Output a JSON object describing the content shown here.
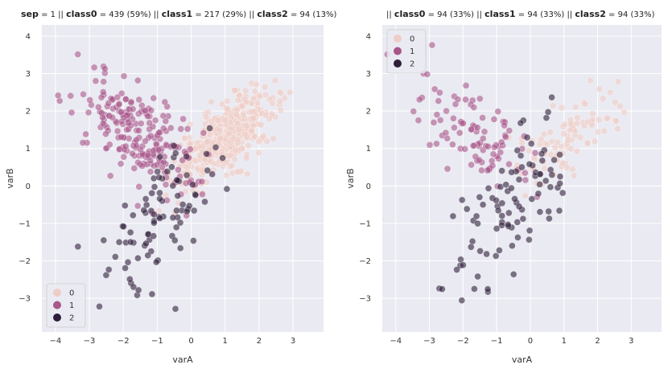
{
  "chart_data": [
    {
      "type": "scatter",
      "title_parts": [
        {
          "t": "sep",
          "b": true
        },
        {
          "t": " = 1 || ",
          "s": true
        },
        {
          "t": "class0",
          "b": true
        },
        {
          "t": " = 439 (59%)  || ",
          "s": true
        },
        {
          "t": "class1",
          "b": true
        },
        {
          "t": " = 217 (29%)  || ",
          "s": true
        },
        {
          "t": "class2",
          "b": true
        },
        {
          "t": " = 94 (13%)",
          "s": true
        }
      ],
      "xlabel": "varA",
      "ylabel": "varB",
      "xlim": [
        -4.4,
        3.9
      ],
      "ylim": [
        -3.9,
        4.3
      ],
      "xticks": [
        -4,
        -3,
        -2,
        -1,
        0,
        1,
        2,
        3
      ],
      "yticks": [
        -3,
        -2,
        -1,
        0,
        1,
        2,
        3,
        4
      ],
      "legend_position": "bottom-left",
      "series": [
        {
          "name": "0",
          "approx_n": 439,
          "center": [
            1.0,
            1.3
          ],
          "spread": [
            0.75,
            0.6
          ],
          "corr": 0.7
        },
        {
          "name": "1",
          "approx_n": 217,
          "center": [
            -1.6,
            1.4
          ],
          "spread": [
            0.9,
            0.8
          ],
          "corr": -0.6
        },
        {
          "name": "2",
          "approx_n": 94,
          "center": [
            -0.7,
            -0.5
          ],
          "spread": [
            0.9,
            1.1
          ],
          "corr": 0.6
        }
      ]
    },
    {
      "type": "scatter",
      "title_parts": [
        {
          "t": "|| ",
          "s": true
        },
        {
          "t": "class0",
          "b": true
        },
        {
          "t": " = 94 (33%)  || ",
          "s": true
        },
        {
          "t": "class1",
          "b": true
        },
        {
          "t": " = 94 (33%)  || ",
          "s": true
        },
        {
          "t": "class2",
          "b": true
        },
        {
          "t": " = 94 (33%)",
          "s": true
        }
      ],
      "xlabel": "varA",
      "ylabel": "varB",
      "xlim": [
        -4.4,
        3.9
      ],
      "ylim": [
        -3.9,
        4.3
      ],
      "xticks": [
        -4,
        -3,
        -2,
        -1,
        0,
        1,
        2,
        3
      ],
      "yticks": [
        -3,
        -2,
        -1,
        0,
        1,
        2,
        3,
        4
      ],
      "legend_position": "top-left",
      "series": [
        {
          "name": "0",
          "approx_n": 94,
          "center": [
            1.1,
            1.3
          ],
          "spread": [
            0.75,
            0.6
          ],
          "corr": 0.7
        },
        {
          "name": "1",
          "approx_n": 94,
          "center": [
            -1.6,
            1.4
          ],
          "spread": [
            0.9,
            0.8
          ],
          "corr": -0.6
        },
        {
          "name": "2",
          "approx_n": 94,
          "center": [
            -0.7,
            -0.5
          ],
          "spread": [
            0.9,
            1.1
          ],
          "corr": 0.6
        }
      ]
    }
  ],
  "colors": {
    "class0": "#eecdc7",
    "class1": "#a8578a",
    "class2": "#2e1e3b",
    "axes_bg": "#eaeaf2",
    "grid": "#ffffff"
  }
}
